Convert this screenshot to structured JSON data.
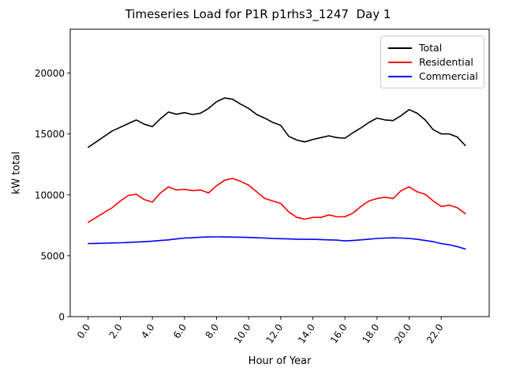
{
  "chart_data": {
    "type": "line",
    "title": "Timeseries Load for P1R p1rhs3_1247  Day 1",
    "xlabel": "Hour of Year",
    "ylabel": "kW total",
    "grid": false,
    "legend_position": "upper right",
    "xlim": [
      -1.12,
      24.99
    ],
    "ylim": [
      0,
      23600
    ],
    "xticks": {
      "values": [
        0,
        2,
        4,
        6,
        8,
        10,
        12,
        14,
        16,
        18,
        20,
        22
      ],
      "labels": [
        "0.0",
        "2.0",
        "4.0",
        "6.0",
        "8.0",
        "10.0",
        "12.0",
        "14.0",
        "16.0",
        "18.0",
        "20.0",
        "22.0"
      ],
      "rotation": -55
    },
    "yticks": {
      "values": [
        0,
        5000,
        10000,
        15000,
        20000
      ],
      "labels": [
        "0",
        "5000",
        "10000",
        "15000",
        "20000"
      ]
    },
    "x": [
      0,
      0.5,
      1,
      1.5,
      2,
      2.5,
      3,
      3.5,
      4,
      4.5,
      5,
      5.5,
      6,
      6.5,
      7,
      7.5,
      8,
      8.5,
      9,
      9.5,
      10,
      10.5,
      11,
      11.5,
      12,
      12.5,
      13,
      13.5,
      14,
      14.5,
      15,
      15.5,
      16,
      16.5,
      17,
      17.5,
      18,
      18.5,
      19,
      19.5,
      20,
      20.5,
      21,
      21.5,
      22,
      22.5,
      23,
      23.5
    ],
    "series": [
      {
        "name": "Total",
        "color": "#000000",
        "values": [
          13900,
          14350,
          14800,
          15250,
          15550,
          15850,
          16150,
          15800,
          15600,
          16250,
          16800,
          16620,
          16750,
          16600,
          16700,
          17100,
          17650,
          17950,
          17850,
          17450,
          17100,
          16600,
          16300,
          15950,
          15700,
          14800,
          14500,
          14350,
          14550,
          14700,
          14850,
          14700,
          14650,
          15100,
          15500,
          15950,
          16300,
          16150,
          16100,
          16500,
          17000,
          16700,
          16150,
          15350,
          15000,
          15000,
          14750,
          14050
        ]
      },
      {
        "name": "Residential",
        "color": "#ff0000",
        "values": [
          7750,
          8150,
          8550,
          8950,
          9500,
          9950,
          10050,
          9600,
          9400,
          10150,
          10650,
          10400,
          10450,
          10350,
          10400,
          10150,
          10750,
          11200,
          11350,
          11100,
          10800,
          10250,
          9700,
          9500,
          9300,
          8600,
          8150,
          8000,
          8150,
          8150,
          8350,
          8200,
          8200,
          8500,
          9050,
          9500,
          9700,
          9800,
          9700,
          10350,
          10650,
          10250,
          10050,
          9500,
          9050,
          9150,
          8950,
          8450
        ]
      },
      {
        "name": "Commercial",
        "color": "#0000ff",
        "values": [
          6000,
          6010,
          6030,
          6050,
          6060,
          6090,
          6120,
          6150,
          6200,
          6250,
          6300,
          6380,
          6450,
          6480,
          6520,
          6540,
          6550,
          6540,
          6530,
          6520,
          6500,
          6480,
          6450,
          6420,
          6400,
          6380,
          6360,
          6350,
          6350,
          6330,
          6300,
          6280,
          6220,
          6250,
          6300,
          6360,
          6420,
          6450,
          6470,
          6450,
          6420,
          6350,
          6250,
          6150,
          6000,
          5900,
          5750,
          5550
        ]
      }
    ]
  }
}
